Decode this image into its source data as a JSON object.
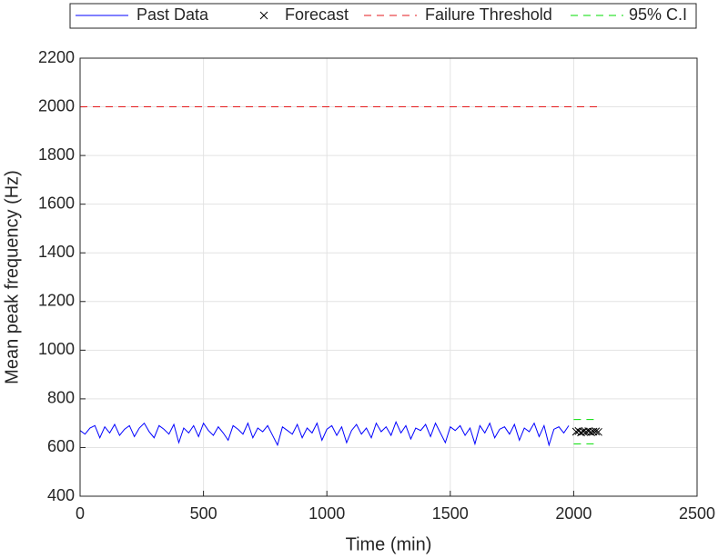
{
  "chart_data": {
    "type": "line",
    "xlabel": "Time (min)",
    "ylabel": "Mean peak frequency (Hz)",
    "xlim": [
      0,
      2500
    ],
    "xticks": [
      0,
      500,
      1000,
      1500,
      2000,
      2500
    ],
    "ylim": [
      400,
      2200
    ],
    "yticks": [
      400,
      600,
      800,
      1000,
      1200,
      1400,
      1600,
      1800,
      2000,
      2200
    ],
    "grid": true,
    "legend": "top",
    "series": [
      {
        "name": "Past Data",
        "color": "#0000ff",
        "style": "solid",
        "x": [
          0,
          20,
          40,
          60,
          80,
          100,
          120,
          140,
          160,
          180,
          200,
          220,
          240,
          260,
          280,
          300,
          320,
          340,
          360,
          380,
          400,
          420,
          440,
          460,
          480,
          500,
          520,
          540,
          560,
          580,
          600,
          620,
          640,
          660,
          680,
          700,
          720,
          740,
          760,
          780,
          800,
          820,
          840,
          860,
          880,
          900,
          920,
          940,
          960,
          980,
          1000,
          1020,
          1040,
          1060,
          1080,
          1100,
          1120,
          1140,
          1160,
          1180,
          1200,
          1220,
          1240,
          1260,
          1280,
          1300,
          1320,
          1340,
          1360,
          1380,
          1400,
          1420,
          1440,
          1460,
          1480,
          1500,
          1520,
          1540,
          1560,
          1580,
          1600,
          1620,
          1640,
          1660,
          1680,
          1700,
          1720,
          1740,
          1760,
          1780,
          1800,
          1820,
          1840,
          1860,
          1880,
          1900,
          1920,
          1940,
          1960,
          1980
        ],
        "values": [
          670,
          655,
          680,
          690,
          640,
          685,
          660,
          695,
          650,
          675,
          690,
          645,
          680,
          700,
          665,
          640,
          690,
          675,
          655,
          695,
          620,
          680,
          660,
          690,
          645,
          700,
          670,
          650,
          685,
          660,
          630,
          690,
          675,
          655,
          700,
          640,
          680,
          665,
          690,
          650,
          610,
          685,
          670,
          655,
          695,
          640,
          680,
          660,
          700,
          630,
          675,
          690,
          650,
          685,
          620,
          670,
          695,
          655,
          680,
          640,
          700,
          665,
          685,
          650,
          705,
          660,
          690,
          635,
          680,
          670,
          695,
          645,
          700,
          660,
          620,
          685,
          670,
          690,
          650,
          680,
          615,
          690,
          660,
          700,
          640,
          675,
          685,
          655,
          695,
          630,
          680,
          665,
          700,
          645,
          690,
          610,
          675,
          685,
          660,
          690
        ]
      },
      {
        "name": "Forecast",
        "color": "#000000",
        "style": "marker",
        "x": [
          2010,
          2020,
          2030,
          2040,
          2050,
          2060,
          2070,
          2080,
          2090,
          2100
        ],
        "values": [
          665,
          668,
          662,
          666,
          664,
          667,
          663,
          665,
          666,
          664
        ]
      },
      {
        "name": "Failure Threshold",
        "color": "#e41a1c",
        "style": "dashed",
        "x": [
          0,
          2100
        ],
        "values": [
          2000,
          2000
        ]
      },
      {
        "name": "95% C.I",
        "color": "#00dd00",
        "style": "dashed",
        "x": [
          2000,
          2100
        ],
        "values": [
          715,
          715
        ],
        "lower_values": [
          615,
          615
        ]
      }
    ]
  }
}
